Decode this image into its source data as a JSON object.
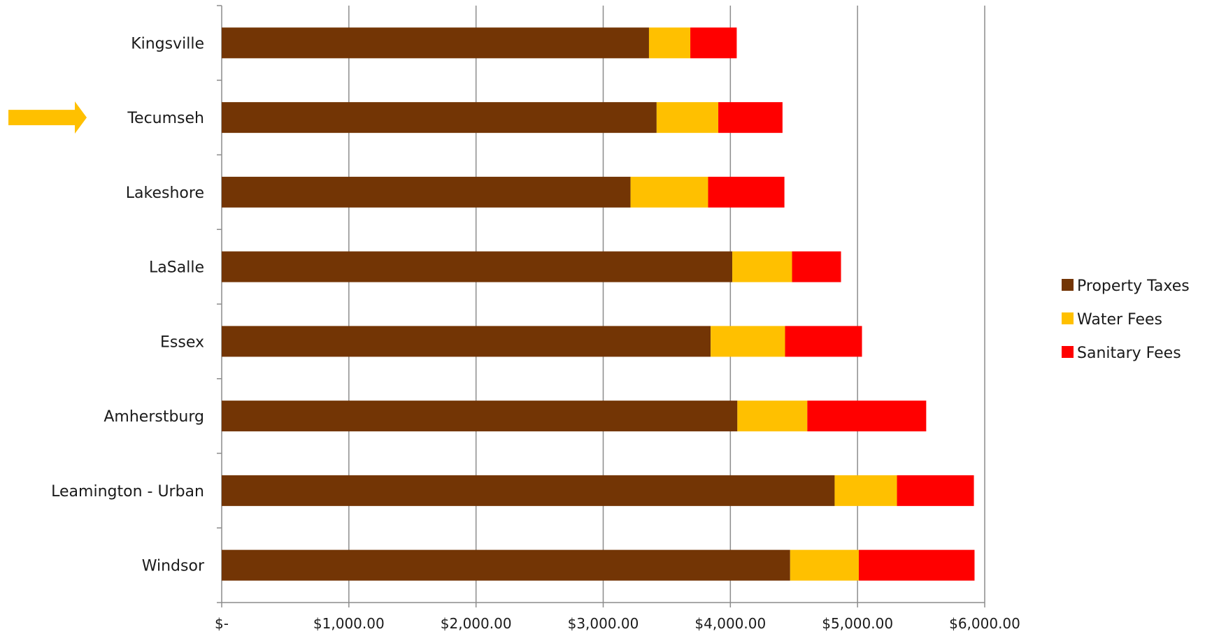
{
  "chart_data": {
    "type": "bar",
    "orientation": "horizontal",
    "stacked": true,
    "categories": [
      "Kingsville",
      "Tecumseh",
      "Lakeshore",
      "LaSalle",
      "Essex",
      "Amherstburg",
      "Leamington - Urban",
      "Windsor"
    ],
    "series": [
      {
        "name": "Property Taxes",
        "color": "#733505",
        "values": [
          3360,
          3420,
          3215,
          4015,
          3845,
          4055,
          4820,
          4470
        ]
      },
      {
        "name": "Water Fees",
        "color": "#FFC000",
        "values": [
          325,
          485,
          610,
          470,
          585,
          550,
          490,
          540
        ]
      },
      {
        "name": "Sanitary Fees",
        "color": "#FF0000",
        "values": [
          365,
          505,
          600,
          385,
          605,
          935,
          605,
          910
        ]
      }
    ],
    "x_ticks": [
      "$-",
      "$1,000.00",
      "$2,000.00",
      "$3,000.00",
      "$4,000.00",
      "$5,000.00",
      "$6,000.00"
    ],
    "xlim": [
      0,
      6000
    ],
    "grid": "vertical",
    "legend_position": "right",
    "highlighted_category": "Tecumseh",
    "highlight_marker": "arrow-right-icon",
    "highlight_color": "#FFC000",
    "title": "",
    "xlabel": "",
    "ylabel": ""
  }
}
